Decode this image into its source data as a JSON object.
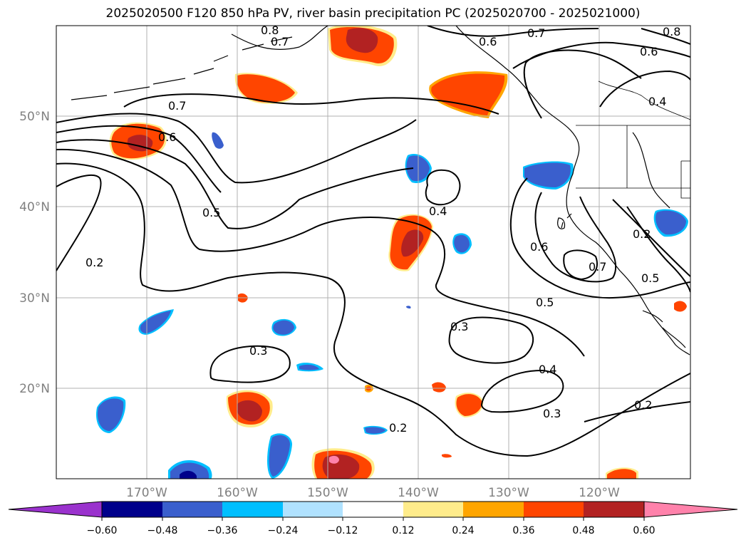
{
  "title": "2025020500 F120 850 hPa PV, river basin precipitation PC (2025020700 - 2025021000)",
  "lat_labels": [
    "50°N",
    "40°N",
    "30°N",
    "20°N"
  ],
  "lon_labels": [
    "170°W",
    "160°W",
    "150°W",
    "140°W",
    "130°W",
    "120°W"
  ],
  "contour_labels": [
    "0.8",
    "0.7",
    "0.6",
    "0.8",
    "0.7",
    "0.6",
    "0.4",
    "0.7",
    "0.6",
    "0.5",
    "0.2",
    "0.4",
    "0.6",
    "0.7",
    "0.2",
    "0.5",
    "0.5",
    "0.3",
    "0.3",
    "0.4",
    "0.3",
    "0.2",
    "0.2"
  ],
  "colorbar": {
    "ticks": [
      "−0.60",
      "−0.48",
      "−0.36",
      "−0.24",
      "−0.12",
      "0.12",
      "0.24",
      "0.36",
      "0.48",
      "0.60"
    ],
    "colors": [
      "#9a32cd",
      "#00008b",
      "#3a5fcd",
      "#00bfff",
      "#b0e2ff",
      "#ffffff",
      "#ffec8b",
      "#ffa500",
      "#ff4500",
      "#b22222",
      "#ff82ab"
    ]
  }
}
